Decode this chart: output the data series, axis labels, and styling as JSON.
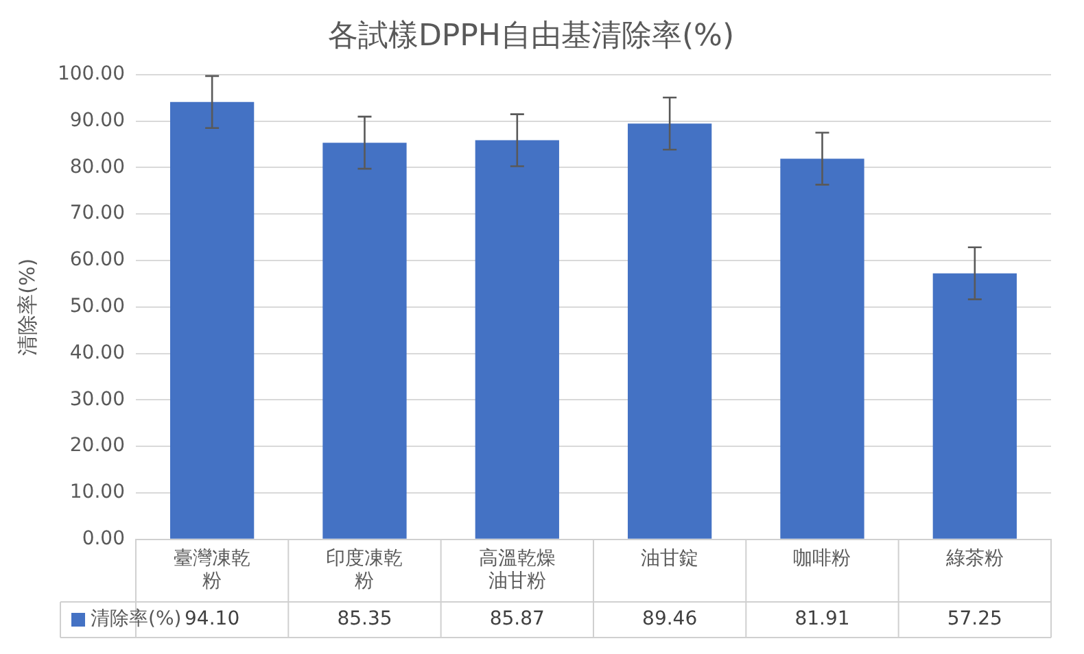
{
  "chart_data": {
    "type": "bar",
    "title": "各試樣DPPH自由基清除率(%)",
    "ylabel": "清除率(%)",
    "categories": [
      "臺灣凍乾粉",
      "印度凍乾粉",
      "高溫乾燥油甘粉",
      "油甘錠",
      "咖啡粉",
      "綠茶粉"
    ],
    "series": [
      {
        "name": "清除率(%)",
        "color": "#4472c4",
        "values": [
          94.1,
          85.35,
          85.87,
          89.46,
          81.91,
          57.25
        ],
        "value_labels": [
          "94.10",
          "85.35",
          "85.87",
          "89.46",
          "81.91",
          "57.25"
        ],
        "errors": [
          5.6,
          5.6,
          5.6,
          5.6,
          5.6,
          5.6
        ]
      }
    ],
    "ylim": [
      0,
      100
    ],
    "yticks": [
      {
        "value": 0,
        "label": "0.00"
      },
      {
        "value": 10,
        "label": "10.00"
      },
      {
        "value": 20,
        "label": "20.00"
      },
      {
        "value": 30,
        "label": "30.00"
      },
      {
        "value": 40,
        "label": "40.00"
      },
      {
        "value": 50,
        "label": "50.00"
      },
      {
        "value": 60,
        "label": "60.00"
      },
      {
        "value": 70,
        "label": "70.00"
      },
      {
        "value": 80,
        "label": "80.00"
      },
      {
        "value": 90,
        "label": "90.00"
      },
      {
        "value": 100,
        "label": "100.00"
      }
    ],
    "grid": "y",
    "legend": "bottom left"
  }
}
